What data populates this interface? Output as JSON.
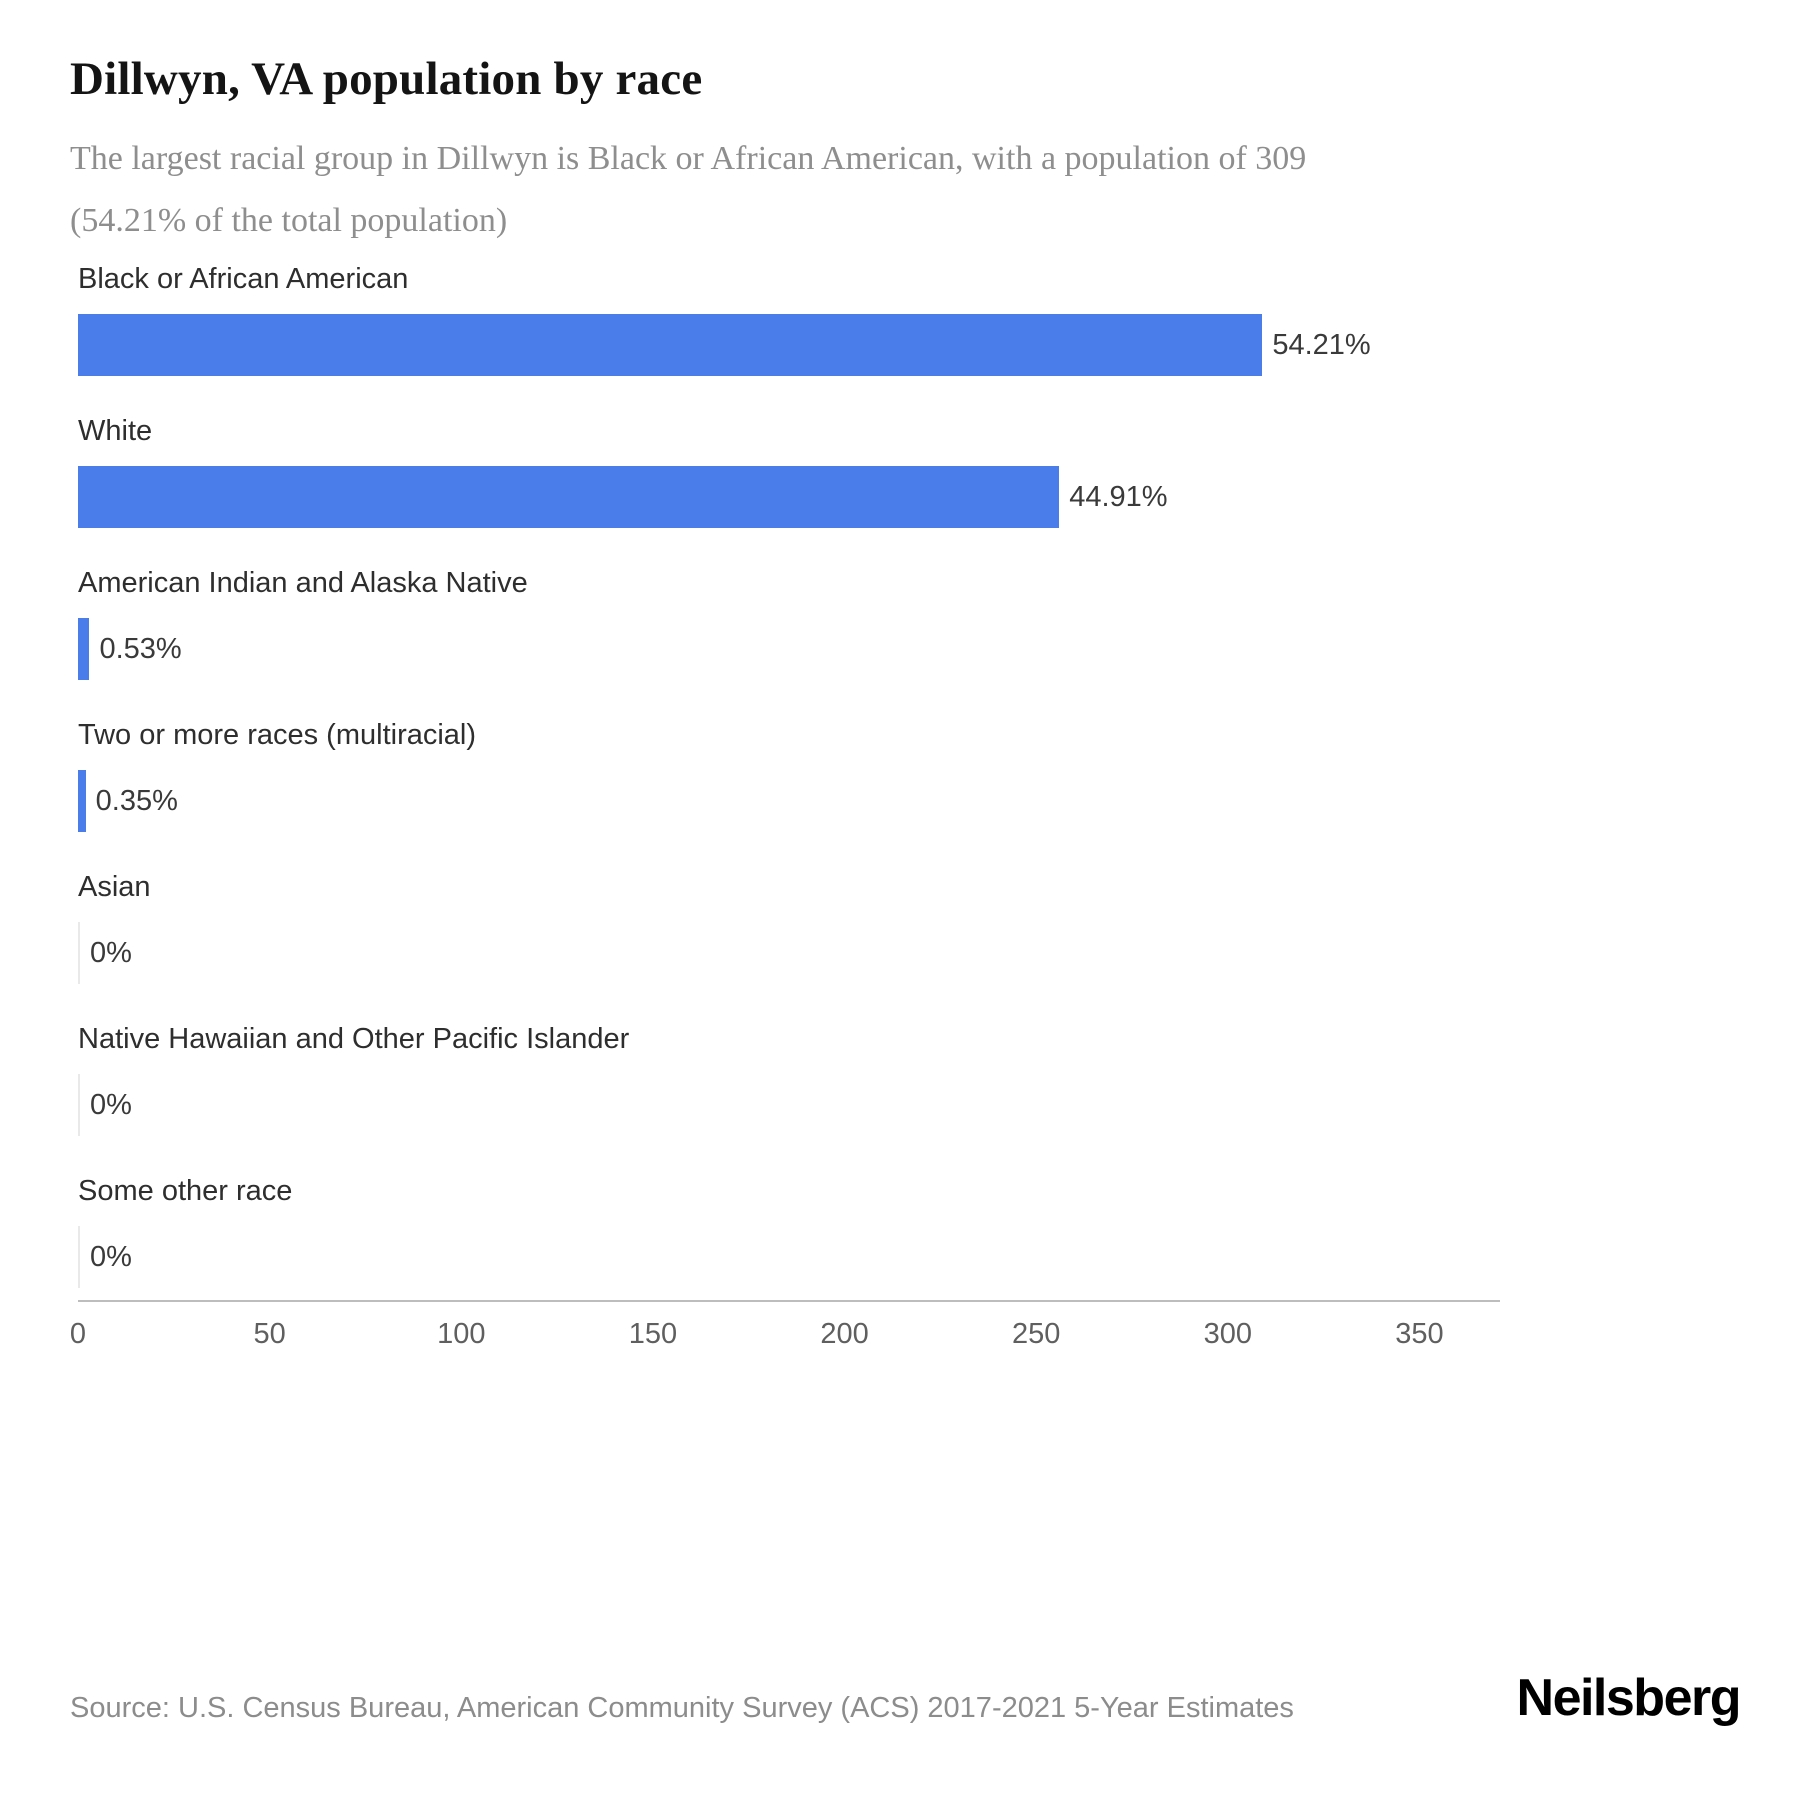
{
  "header": {
    "title": "Dillwyn, VA population by race",
    "subtitle_line1": "The largest racial group in Dillwyn is Black or African American, with a population of 309",
    "subtitle_line2": "(54.21% of the total population)"
  },
  "chart_data": {
    "type": "bar",
    "orientation": "horizontal",
    "title": "Dillwyn, VA population by race",
    "xlabel": "",
    "ylabel": "",
    "categories": [
      "Black or African American",
      "White",
      "American Indian and Alaska Native",
      "Two or more races (multiracial)",
      "Asian",
      "Native Hawaiian and Other Pacific Islander",
      "Some other race"
    ],
    "values": [
      309,
      256,
      3,
      2,
      0,
      0,
      0
    ],
    "value_labels": [
      "54.21%",
      "44.91%",
      "0.53%",
      "0.35%",
      "0%",
      "0%",
      "0%"
    ],
    "percentages": [
      54.21,
      44.91,
      0.53,
      0.35,
      0,
      0,
      0
    ],
    "xlim": [
      0,
      371
    ],
    "x_ticks": [
      0,
      50,
      100,
      150,
      200,
      250,
      300,
      350
    ],
    "bar_color": "#4a7de9",
    "grid": false,
    "legend": "none"
  },
  "footer": {
    "source": "Source: U.S. Census Bureau, American Community Survey (ACS) 2017-2021 5-Year Estimates",
    "brand": "Neilsberg"
  }
}
